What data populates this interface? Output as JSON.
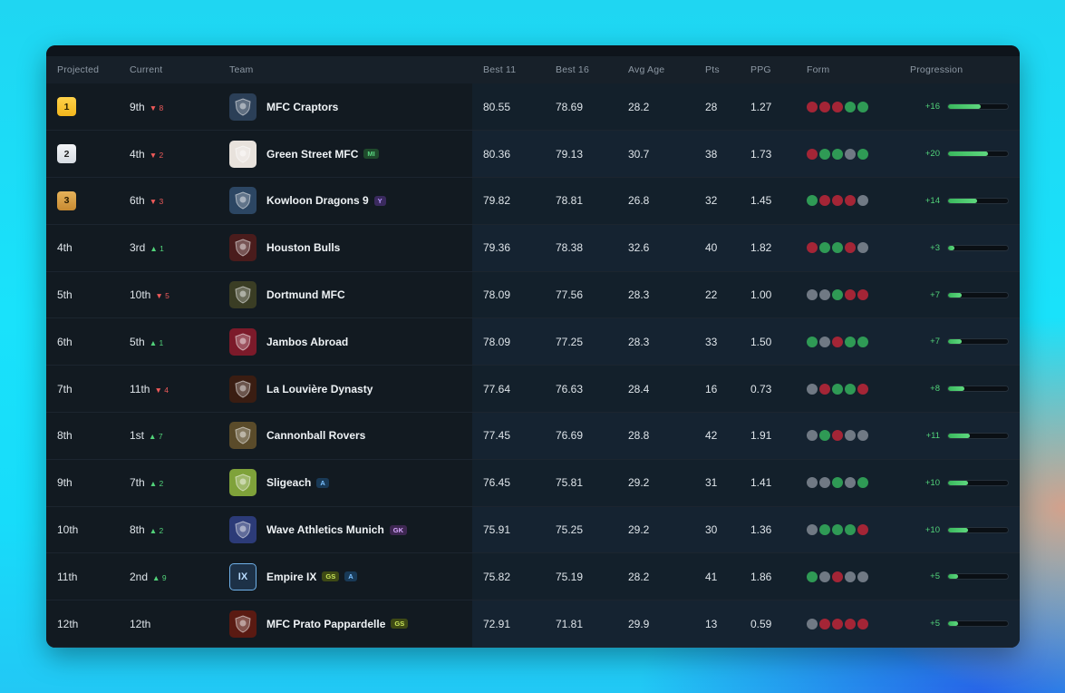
{
  "colors": {
    "win": "#2f9a55",
    "loss": "#a42536",
    "draw": "#707984",
    "progress": "#52d37a"
  },
  "columns": [
    "Projected",
    "Current",
    "Team",
    "Best 11",
    "Best 16",
    "Avg Age",
    "Pts",
    "PPG",
    "Form",
    "Progression"
  ],
  "rows": [
    {
      "projected": "1",
      "badge": "gold",
      "current": "9th",
      "delta_dir": "down",
      "delta": "8",
      "team": "MFC Craptors",
      "logo_icon": "raptor-logo-icon",
      "logo_color": "#2b3f57",
      "logo_text": "",
      "tags": [],
      "best11": "80.55",
      "best16": "78.69",
      "avg_age": "28.2",
      "pts": "28",
      "ppg": "1.27",
      "form": [
        "L",
        "L",
        "L",
        "W",
        "W"
      ],
      "progression": "+16",
      "prog_fill": 0.55
    },
    {
      "projected": "2",
      "badge": "silver",
      "current": "4th",
      "delta_dir": "down",
      "delta": "2",
      "team": "Green Street MFC",
      "logo_icon": "green-street-crest-icon",
      "logo_color": "#e8e2dc",
      "logo_text": "",
      "tags": [
        "MI"
      ],
      "best11": "80.36",
      "best16": "79.13",
      "avg_age": "30.7",
      "pts": "38",
      "ppg": "1.73",
      "form": [
        "L",
        "W",
        "W",
        "D",
        "W"
      ],
      "progression": "+20",
      "prog_fill": 0.67
    },
    {
      "projected": "3",
      "badge": "bronze",
      "current": "6th",
      "delta_dir": "down",
      "delta": "3",
      "team": "Kowloon Dragons 9",
      "logo_icon": "dragon-logo-icon",
      "logo_color": "#2c4663",
      "logo_text": "",
      "tags": [
        "Y"
      ],
      "best11": "79.82",
      "best16": "78.81",
      "avg_age": "26.8",
      "pts": "32",
      "ppg": "1.45",
      "form": [
        "W",
        "L",
        "L",
        "L",
        "D"
      ],
      "progression": "+14",
      "prog_fill": 0.48
    },
    {
      "projected": "4th",
      "badge": "",
      "current": "3rd",
      "delta_dir": "up",
      "delta": "1",
      "team": "Houston Bulls",
      "logo_icon": "bull-logo-icon",
      "logo_color": "#4a1c1c",
      "logo_text": "",
      "tags": [],
      "best11": "79.36",
      "best16": "78.38",
      "avg_age": "32.6",
      "pts": "40",
      "ppg": "1.82",
      "form": [
        "L",
        "W",
        "W",
        "L",
        "D"
      ],
      "progression": "+3",
      "prog_fill": 0.1
    },
    {
      "projected": "5th",
      "badge": "",
      "current": "10th",
      "delta_dir": "down",
      "delta": "5",
      "team": "Dortmund MFC",
      "logo_icon": "shield-logo-icon",
      "logo_color": "#3a3d24",
      "logo_text": "",
      "tags": [],
      "best11": "78.09",
      "best16": "77.56",
      "avg_age": "28.3",
      "pts": "22",
      "ppg": "1.00",
      "form": [
        "D",
        "D",
        "W",
        "L",
        "L"
      ],
      "progression": "+7",
      "prog_fill": 0.23
    },
    {
      "projected": "6th",
      "badge": "",
      "current": "5th",
      "delta_dir": "up",
      "delta": "1",
      "team": "Jambos Abroad",
      "logo_icon": "jambos-crest-icon",
      "logo_color": "#7c1a2a",
      "logo_text": "",
      "tags": [],
      "best11": "78.09",
      "best16": "77.25",
      "avg_age": "28.3",
      "pts": "33",
      "ppg": "1.50",
      "form": [
        "W",
        "D",
        "L",
        "W",
        "W"
      ],
      "progression": "+7",
      "prog_fill": 0.23
    },
    {
      "projected": "7th",
      "badge": "",
      "current": "11th",
      "delta_dir": "down",
      "delta": "4",
      "team": "La Louvière Dynasty",
      "logo_icon": "dynasty-logo-icon",
      "logo_color": "#3a1d12",
      "logo_text": "",
      "tags": [],
      "best11": "77.64",
      "best16": "76.63",
      "avg_age": "28.4",
      "pts": "16",
      "ppg": "0.73",
      "form": [
        "D",
        "L",
        "W",
        "W",
        "L"
      ],
      "progression": "+8",
      "prog_fill": 0.27
    },
    {
      "projected": "8th",
      "badge": "",
      "current": "1st",
      "delta_dir": "up",
      "delta": "7",
      "team": "Cannonball Rovers",
      "logo_icon": "cannonball-logo-icon",
      "logo_color": "#5a4b2a",
      "logo_text": "",
      "tags": [],
      "best11": "77.45",
      "best16": "76.69",
      "avg_age": "28.8",
      "pts": "42",
      "ppg": "1.91",
      "form": [
        "D",
        "W",
        "L",
        "D",
        "D"
      ],
      "progression": "+11",
      "prog_fill": 0.37
    },
    {
      "projected": "9th",
      "badge": "",
      "current": "7th",
      "delta_dir": "up",
      "delta": "2",
      "team": "Sligeach",
      "logo_icon": "sligeach-crest-icon",
      "logo_color": "#7fa23a",
      "logo_text": "",
      "tags": [
        "A"
      ],
      "best11": "76.45",
      "best16": "75.81",
      "avg_age": "29.2",
      "pts": "31",
      "ppg": "1.41",
      "form": [
        "D",
        "D",
        "W",
        "D",
        "W"
      ],
      "progression": "+10",
      "prog_fill": 0.34
    },
    {
      "projected": "10th",
      "badge": "",
      "current": "8th",
      "delta_dir": "up",
      "delta": "2",
      "team": "Wave Athletics Munich",
      "logo_icon": "munich-logo-icon",
      "logo_color": "#2c3b78",
      "logo_text": "",
      "tags": [
        "GK"
      ],
      "best11": "75.91",
      "best16": "75.25",
      "avg_age": "29.2",
      "pts": "30",
      "ppg": "1.36",
      "form": [
        "D",
        "W",
        "W",
        "W",
        "L"
      ],
      "progression": "+10",
      "prog_fill": 0.34
    },
    {
      "projected": "11th",
      "badge": "",
      "current": "2nd",
      "delta_dir": "up",
      "delta": "9",
      "team": "Empire IX",
      "logo_icon": "empire-ix-logo-icon",
      "logo_color": "#1d3147",
      "logo_text": "IX",
      "tags": [
        "GS",
        "A"
      ],
      "best11": "75.82",
      "best16": "75.19",
      "avg_age": "28.2",
      "pts": "41",
      "ppg": "1.86",
      "form": [
        "W",
        "D",
        "L",
        "D",
        "D"
      ],
      "progression": "+5",
      "prog_fill": 0.17
    },
    {
      "projected": "12th",
      "badge": "",
      "current": "12th",
      "delta_dir": "",
      "delta": "",
      "team": "MFC Prato Pappardelle",
      "logo_icon": "phoenix-logo-icon",
      "logo_color": "#5a1a12",
      "logo_text": "",
      "tags": [
        "GS"
      ],
      "best11": "72.91",
      "best16": "71.81",
      "avg_age": "29.9",
      "pts": "13",
      "ppg": "0.59",
      "form": [
        "D",
        "L",
        "L",
        "L",
        "L"
      ],
      "progression": "+5",
      "prog_fill": 0.17
    }
  ]
}
